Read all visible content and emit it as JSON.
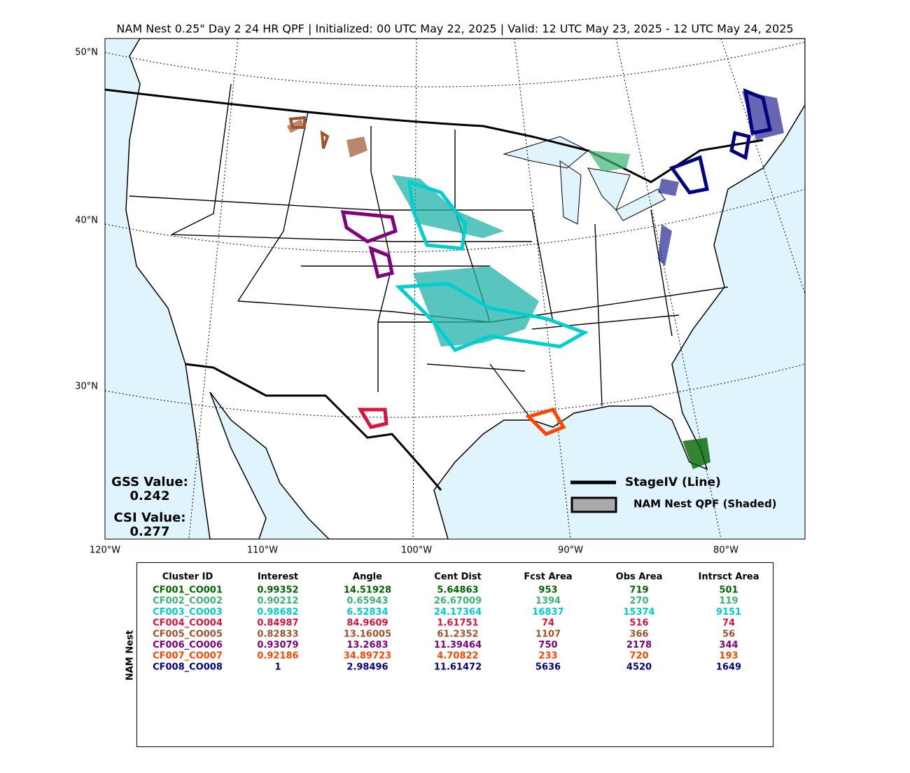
{
  "header": {
    "title": "NAM Nest 0.25\" Day 2 24 HR QPF | Initialized: 00 UTC May 22, 2025 | Valid: 12 UTC May 23, 2025 - 12 UTC May 24, 2025"
  },
  "map": {
    "lat_labels": [
      "50°N",
      "40°N",
      "30°N"
    ],
    "lon_labels": [
      "120°W",
      "110°W",
      "100°W",
      "90°W",
      "80°W"
    ],
    "gss": {
      "label": "GSS Value:",
      "value": "0.242"
    },
    "csi": {
      "label": "CSI Value:",
      "value": "0.277"
    },
    "legend": [
      "StageIV (Line)",
      "NAM Nest QPF (Shaded)"
    ]
  },
  "table": {
    "side_label": "NAM Nest",
    "headers": [
      "Cluster ID",
      "Interest",
      "Angle",
      "Cent Dist",
      "Fcst Area",
      "Obs Area",
      "Intrsct Area"
    ],
    "rows": [
      {
        "color": "#006400",
        "cells": [
          "CF001_CO001",
          "0.99352",
          "14.51928",
          "5.64863",
          "953",
          "719",
          "501"
        ]
      },
      {
        "color": "#3cb371",
        "cells": [
          "CF002_CO002",
          "0.90212",
          "0.65943",
          "26.67009",
          "1394",
          "270",
          "119"
        ]
      },
      {
        "color": "#00ced1",
        "cells": [
          "CF003_CO003",
          "0.98682",
          "6.52834",
          "24.17364",
          "16837",
          "15374",
          "9151"
        ]
      },
      {
        "color": "#dc143c",
        "cells": [
          "CF004_CO004",
          "0.84987",
          "84.9609",
          "1.61751",
          "74",
          "516",
          "74"
        ]
      },
      {
        "color": "#a0522d",
        "cells": [
          "CF005_CO005",
          "0.82833",
          "13.16005",
          "61.2352",
          "1107",
          "366",
          "56"
        ]
      },
      {
        "color": "#800080",
        "cells": [
          "CF006_CO006",
          "0.93079",
          "13.2683",
          "11.39464",
          "750",
          "2178",
          "344"
        ]
      },
      {
        "color": "#ff4500",
        "cells": [
          "CF007_CO007",
          "0.92186",
          "34.89723",
          "4.70822",
          "233",
          "720",
          "193"
        ]
      },
      {
        "color": "#000080",
        "cells": [
          "CF008_CO008",
          "1",
          "2.98496",
          "11.61472",
          "5636",
          "4520",
          "1649"
        ]
      }
    ]
  }
}
